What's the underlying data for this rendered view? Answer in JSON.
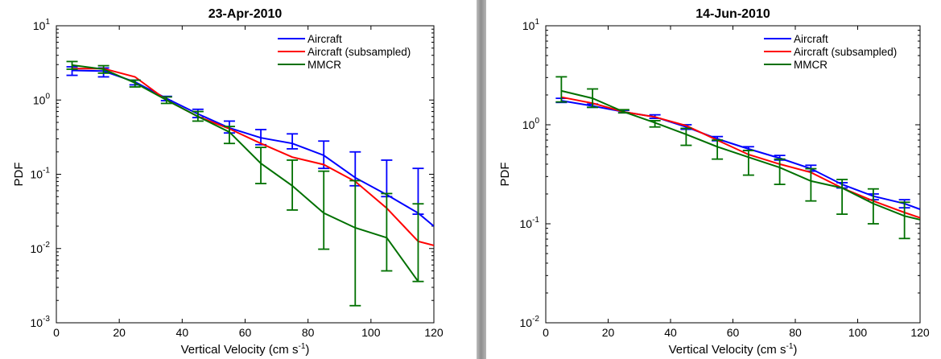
{
  "chart_data": [
    {
      "type": "line",
      "title": "23-Apr-2010",
      "xlabel": "Vertical Velocity (cm s",
      "xlabel_sup": "-1",
      "xlabel_end": ")",
      "ylabel": "PDF",
      "xlim": [
        0,
        120
      ],
      "ylim": [
        0.001,
        10
      ],
      "yscale": "log",
      "x_ticks": [
        "0",
        "20",
        "40",
        "60",
        "80",
        "100",
        "120"
      ],
      "y_ticks": [
        {
          "base": "10",
          "exp": "-3"
        },
        {
          "base": "10",
          "exp": "-2"
        },
        {
          "base": "10",
          "exp": "-1"
        },
        {
          "base": "10",
          "exp": "0"
        },
        {
          "base": "10",
          "exp": "1"
        }
      ],
      "legend_position": "top-right",
      "series": [
        {
          "name": "Aircraft",
          "color": "#0000ff",
          "x": [
            5,
            15,
            25,
            35,
            45,
            55,
            65,
            75,
            85,
            95,
            105,
            115,
            120
          ],
          "y": [
            2.5,
            2.45,
            1.75,
            1.05,
            0.65,
            0.42,
            0.31,
            0.26,
            0.18,
            0.09,
            0.053,
            0.03,
            0.02
          ],
          "err_x": [
            5,
            15,
            25,
            35,
            45,
            55,
            65,
            75,
            85,
            95,
            105,
            115
          ],
          "err_low": [
            2.15,
            2.05,
            1.6,
            0.98,
            0.58,
            0.36,
            0.25,
            0.22,
            0.12,
            0.07,
            0.05,
            0.029
          ],
          "err_high": [
            2.8,
            2.7,
            1.85,
            1.12,
            0.75,
            0.52,
            0.4,
            0.35,
            0.28,
            0.2,
            0.155,
            0.12
          ]
        },
        {
          "name": "Aircraft (subsampled)",
          "color": "#ff0000",
          "x": [
            5,
            15,
            25,
            35,
            45,
            55,
            65,
            75,
            85,
            95,
            105,
            115,
            120
          ],
          "y": [
            2.65,
            2.65,
            2.05,
            1.0,
            0.6,
            0.41,
            0.26,
            0.17,
            0.135,
            0.08,
            0.035,
            0.0125,
            0.011
          ]
        },
        {
          "name": "MMCR",
          "color": "#007000",
          "x": [
            5,
            15,
            25,
            35,
            45,
            55,
            65,
            75,
            85,
            95,
            105,
            115
          ],
          "y": [
            2.95,
            2.6,
            1.7,
            1.0,
            0.6,
            0.37,
            0.14,
            0.07,
            0.03,
            0.019,
            0.014,
            0.0036
          ],
          "err_x": [
            5,
            15,
            25,
            35,
            45,
            55,
            65,
            75,
            85,
            95,
            105,
            115
          ],
          "err_low": [
            2.6,
            2.3,
            1.5,
            0.9,
            0.52,
            0.26,
            0.075,
            0.033,
            0.0098,
            0.0017,
            0.005,
            0.0036
          ],
          "err_high": [
            3.3,
            2.9,
            1.85,
            1.1,
            0.7,
            0.44,
            0.23,
            0.155,
            0.11,
            0.082,
            0.055,
            0.04
          ]
        }
      ]
    },
    {
      "type": "line",
      "title": "14-Jun-2010",
      "xlabel": "Vertical Velocity (cm s",
      "xlabel_sup": "-1",
      "xlabel_end": ")",
      "ylabel": "PDF",
      "xlim": [
        0,
        120
      ],
      "ylim": [
        0.01,
        10
      ],
      "yscale": "log",
      "x_ticks": [
        "0",
        "20",
        "40",
        "60",
        "80",
        "100",
        "120"
      ],
      "y_ticks": [
        {
          "base": "10",
          "exp": "-2"
        },
        {
          "base": "10",
          "exp": "-1"
        },
        {
          "base": "10",
          "exp": "0"
        },
        {
          "base": "10",
          "exp": "1"
        }
      ],
      "legend_position": "top-right",
      "series": [
        {
          "name": "Aircraft",
          "color": "#0000ff",
          "x": [
            5,
            15,
            25,
            35,
            45,
            55,
            65,
            75,
            85,
            95,
            105,
            115,
            120
          ],
          "y": [
            1.75,
            1.55,
            1.35,
            1.2,
            0.95,
            0.72,
            0.57,
            0.46,
            0.36,
            0.25,
            0.19,
            0.16,
            0.14
          ],
          "err_x": [
            5,
            15,
            25,
            35,
            45,
            55,
            65,
            75,
            85,
            95,
            105,
            115
          ],
          "err_low": [
            1.68,
            1.5,
            1.32,
            1.16,
            0.9,
            0.69,
            0.55,
            0.44,
            0.34,
            0.23,
            0.175,
            0.145
          ],
          "err_high": [
            1.85,
            1.62,
            1.4,
            1.26,
            1.0,
            0.76,
            0.6,
            0.49,
            0.39,
            0.26,
            0.2,
            0.175
          ]
        },
        {
          "name": "Aircraft (subsampled)",
          "color": "#ff0000",
          "x": [
            5,
            15,
            25,
            35,
            45,
            55,
            65,
            75,
            85,
            95,
            105,
            115,
            120
          ],
          "y": [
            1.9,
            1.65,
            1.35,
            1.2,
            0.98,
            0.7,
            0.5,
            0.4,
            0.33,
            0.23,
            0.17,
            0.13,
            0.115
          ]
        },
        {
          "name": "MMCR",
          "color": "#007000",
          "x": [
            5,
            15,
            25,
            35,
            45,
            55,
            65,
            75,
            85,
            95,
            105,
            115,
            120
          ],
          "y": [
            2.2,
            1.85,
            1.35,
            1.05,
            0.8,
            0.6,
            0.47,
            0.37,
            0.27,
            0.23,
            0.16,
            0.12,
            0.11
          ],
          "err_x": [
            5,
            15,
            25,
            35,
            45,
            55,
            65,
            75,
            85,
            95,
            105,
            115
          ],
          "err_low": [
            1.7,
            1.5,
            1.32,
            0.95,
            0.62,
            0.45,
            0.31,
            0.25,
            0.17,
            0.125,
            0.1,
            0.071
          ],
          "err_high": [
            3.05,
            2.3,
            1.42,
            1.1,
            0.92,
            0.7,
            0.55,
            0.45,
            0.36,
            0.28,
            0.225,
            0.165
          ]
        }
      ]
    }
  ]
}
